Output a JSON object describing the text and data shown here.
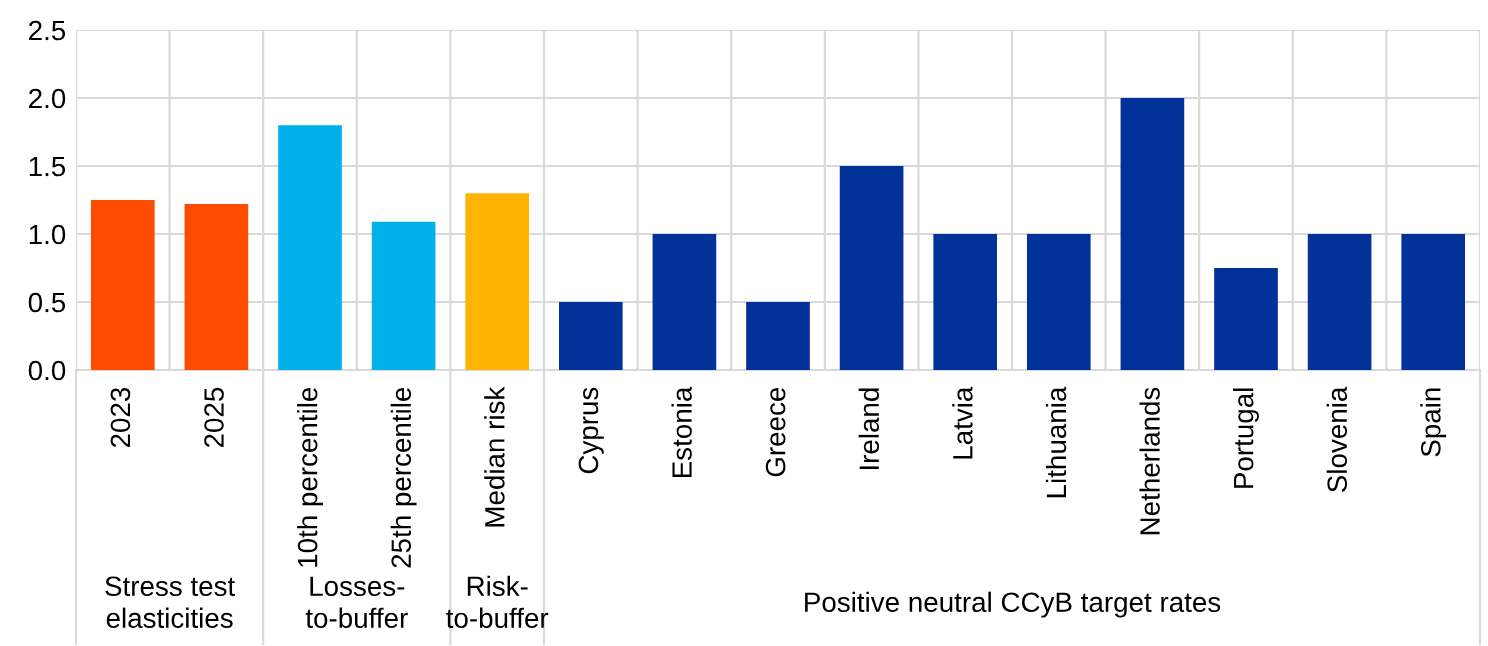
{
  "chart_data": {
    "type": "bar",
    "categories": [
      "2023",
      "2025",
      "10th percentile",
      "25th percentile",
      "Median risk",
      "Cyprus",
      "Estonia",
      "Greece",
      "Ireland",
      "Latvia",
      "Lithuania",
      "Netherlands",
      "Portugal",
      "Slovenia",
      "Spain"
    ],
    "values": [
      1.25,
      1.22,
      1.8,
      1.09,
      1.3,
      0.5,
      1.0,
      0.5,
      1.5,
      1.0,
      1.0,
      2.0,
      0.75,
      1.0,
      1.0
    ],
    "colors": [
      "#ff4b00",
      "#ff4b00",
      "#00b1ea",
      "#00b1ea",
      "#ffb400",
      "#003299",
      "#003299",
      "#003299",
      "#003299",
      "#003299",
      "#003299",
      "#003299",
      "#003299",
      "#003299",
      "#003299"
    ],
    "ylim": [
      0,
      2.5
    ],
    "yticks": [
      {
        "value": 0,
        "label": "0.0"
      },
      {
        "value": 0.5,
        "label": "0.5"
      },
      {
        "value": 1.0,
        "label": "1.0"
      },
      {
        "value": 1.5,
        "label": "1.5"
      },
      {
        "value": 2.0,
        "label": "2.0"
      },
      {
        "value": 2.5,
        "label": "2.5"
      }
    ],
    "grid": true,
    "annotations": [
      "Stress test\nelasticities",
      "Losses-\nto-buffer",
      "Risk-\nto-buffer",
      "Positive neutral CCyB target rates"
    ]
  }
}
